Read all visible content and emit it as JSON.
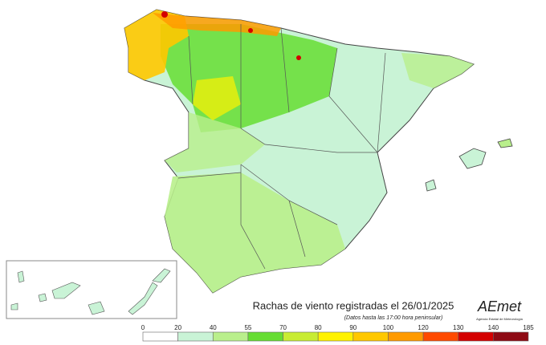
{
  "title": "Rachas de viento registradas el 26/01/2025",
  "subtitle": "(Datos hasta las 17:00 hora peninsular)",
  "logo": {
    "name": "AEmet",
    "caption": "Agencia Estatal de Meteorología"
  },
  "legend": {
    "ticks": [
      0,
      20,
      40,
      55,
      70,
      80,
      90,
      100,
      120,
      130,
      140,
      185
    ],
    "colors": [
      "#ffffff",
      "#c9f3d6",
      "#b9ef8c",
      "#66dd33",
      "#c8ec33",
      "#fff200",
      "#ffc800",
      "#ff9a00",
      "#ff4a00",
      "#d40000",
      "#8e0a14"
    ]
  }
}
